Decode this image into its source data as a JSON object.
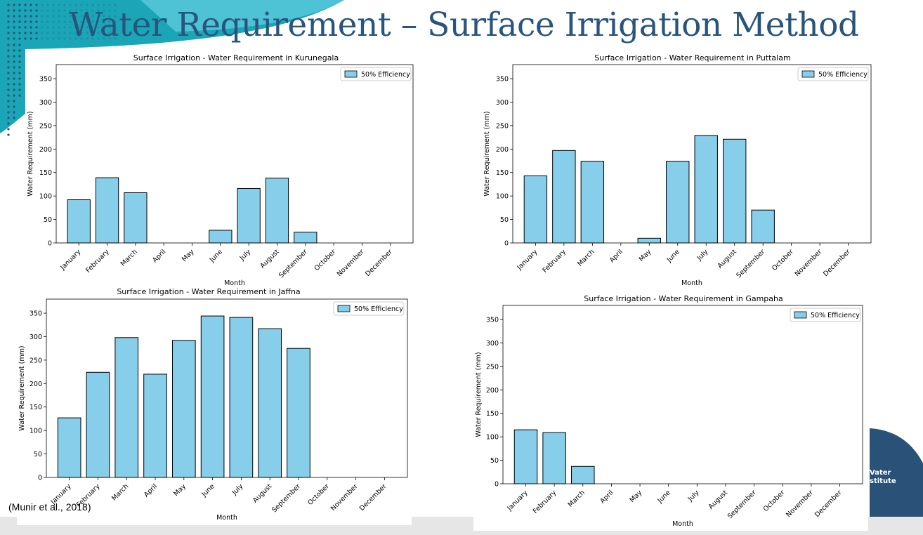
{
  "slide": {
    "title": "Water Requirement – Surface Irrigation Method",
    "citation": "(Munir et al., 2018)",
    "logo_lines": [
      "Vater",
      "stitute"
    ]
  },
  "colors": {
    "bar_fill": "#87ceeb",
    "bar_edge": "#000000",
    "title_color": "#28557d",
    "accent_teal": "#1aa6b7",
    "accent_navy": "#2a5279"
  },
  "chart_data": [
    {
      "type": "bar",
      "title": "Surface Irrigation - Water Requirement in Kurunegala",
      "xlabel": "Month",
      "ylabel": "Water Requirement (mm)",
      "legend": "50% Efficiency",
      "legend_position": "top-right",
      "ylim": [
        0,
        380
      ],
      "yticks": [
        0,
        50,
        100,
        150,
        200,
        250,
        300,
        350
      ],
      "categories": [
        "January",
        "February",
        "March",
        "April",
        "May",
        "June",
        "July",
        "August",
        "September",
        "October",
        "November",
        "December"
      ],
      "values": [
        92,
        139,
        107,
        0,
        0,
        27,
        116,
        138,
        23,
        0,
        0,
        0
      ]
    },
    {
      "type": "bar",
      "title": "Surface Irrigation - Water Requirement in Puttalam",
      "xlabel": "Month",
      "ylabel": "Water Requirement (mm)",
      "legend": "50% Efficiency",
      "legend_position": "top-right",
      "ylim": [
        0,
        380
      ],
      "yticks": [
        0,
        50,
        100,
        150,
        200,
        250,
        300,
        350
      ],
      "categories": [
        "January",
        "February",
        "March",
        "April",
        "May",
        "June",
        "July",
        "August",
        "September",
        "October",
        "November",
        "December"
      ],
      "values": [
        143,
        197,
        174,
        0,
        10,
        174,
        229,
        221,
        70,
        0,
        0,
        0
      ]
    },
    {
      "type": "bar",
      "title": "Surface Irrigation - Water Requirement in Jaffna",
      "xlabel": "Month",
      "ylabel": "Water Requirement (mm)",
      "legend": "50% Efficiency",
      "legend_position": "top-right",
      "ylim": [
        0,
        380
      ],
      "yticks": [
        0,
        50,
        100,
        150,
        200,
        250,
        300,
        350
      ],
      "categories": [
        "January",
        "February",
        "March",
        "April",
        "May",
        "June",
        "July",
        "August",
        "September",
        "October",
        "November",
        "December"
      ],
      "values": [
        127,
        224,
        298,
        220,
        292,
        344,
        341,
        317,
        275,
        0,
        0,
        0
      ]
    },
    {
      "type": "bar",
      "title": "Surface Irrigation - Water Requirement in Gampaha",
      "xlabel": "Month",
      "ylabel": "Water Requirement (mm)",
      "legend": "50% Efficiency",
      "legend_position": "top-right",
      "ylim": [
        0,
        380
      ],
      "yticks": [
        0,
        50,
        100,
        150,
        200,
        250,
        300,
        350
      ],
      "categories": [
        "January",
        "February",
        "March",
        "April",
        "May",
        "June",
        "July",
        "August",
        "September",
        "October",
        "November",
        "December"
      ],
      "values": [
        115,
        109,
        37,
        0,
        0,
        0,
        0,
        0,
        0,
        0,
        0,
        0
      ]
    }
  ]
}
